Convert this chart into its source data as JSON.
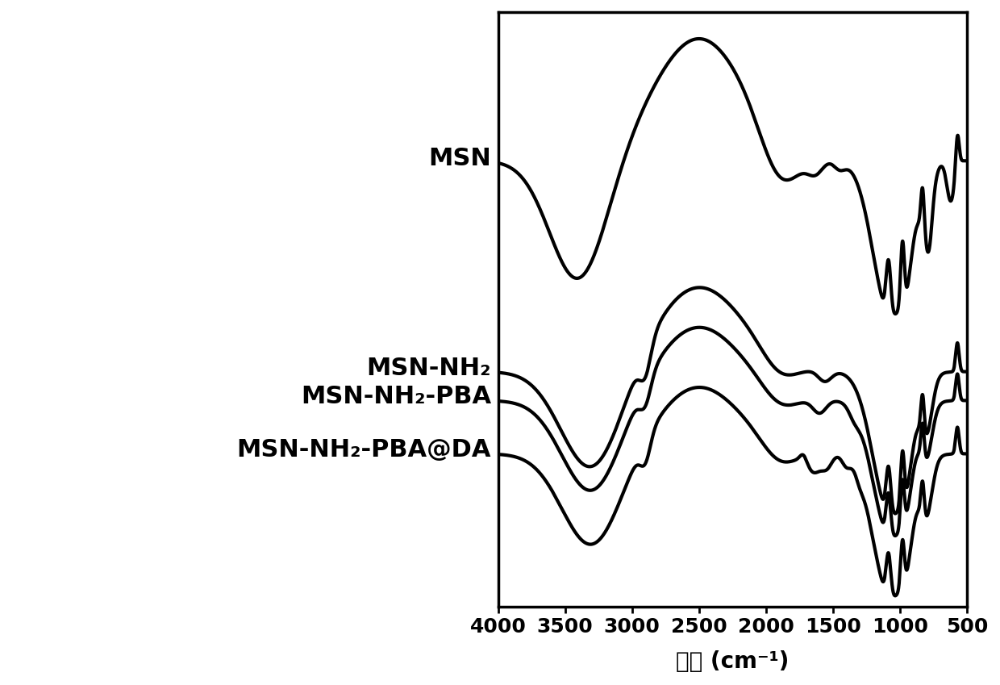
{
  "xlabel": "波长（cm⁻¹）",
  "xlabel_plain": "波长 (cm⁻¹)",
  "xlim": [
    4000,
    500
  ],
  "xticks": [
    4000,
    3500,
    3000,
    2500,
    2000,
    1500,
    1000,
    500
  ],
  "labels": [
    "MSN",
    "MSN-NH₂",
    "MSN-NH₂-PBA",
    "MSN-NH₂-PBA@DA"
  ],
  "line_color": "#000000",
  "line_width": 3.0,
  "bg_color": "#ffffff",
  "xlabel_fontsize": 20,
  "tick_fontsize": 18,
  "label_fontsize": 22
}
